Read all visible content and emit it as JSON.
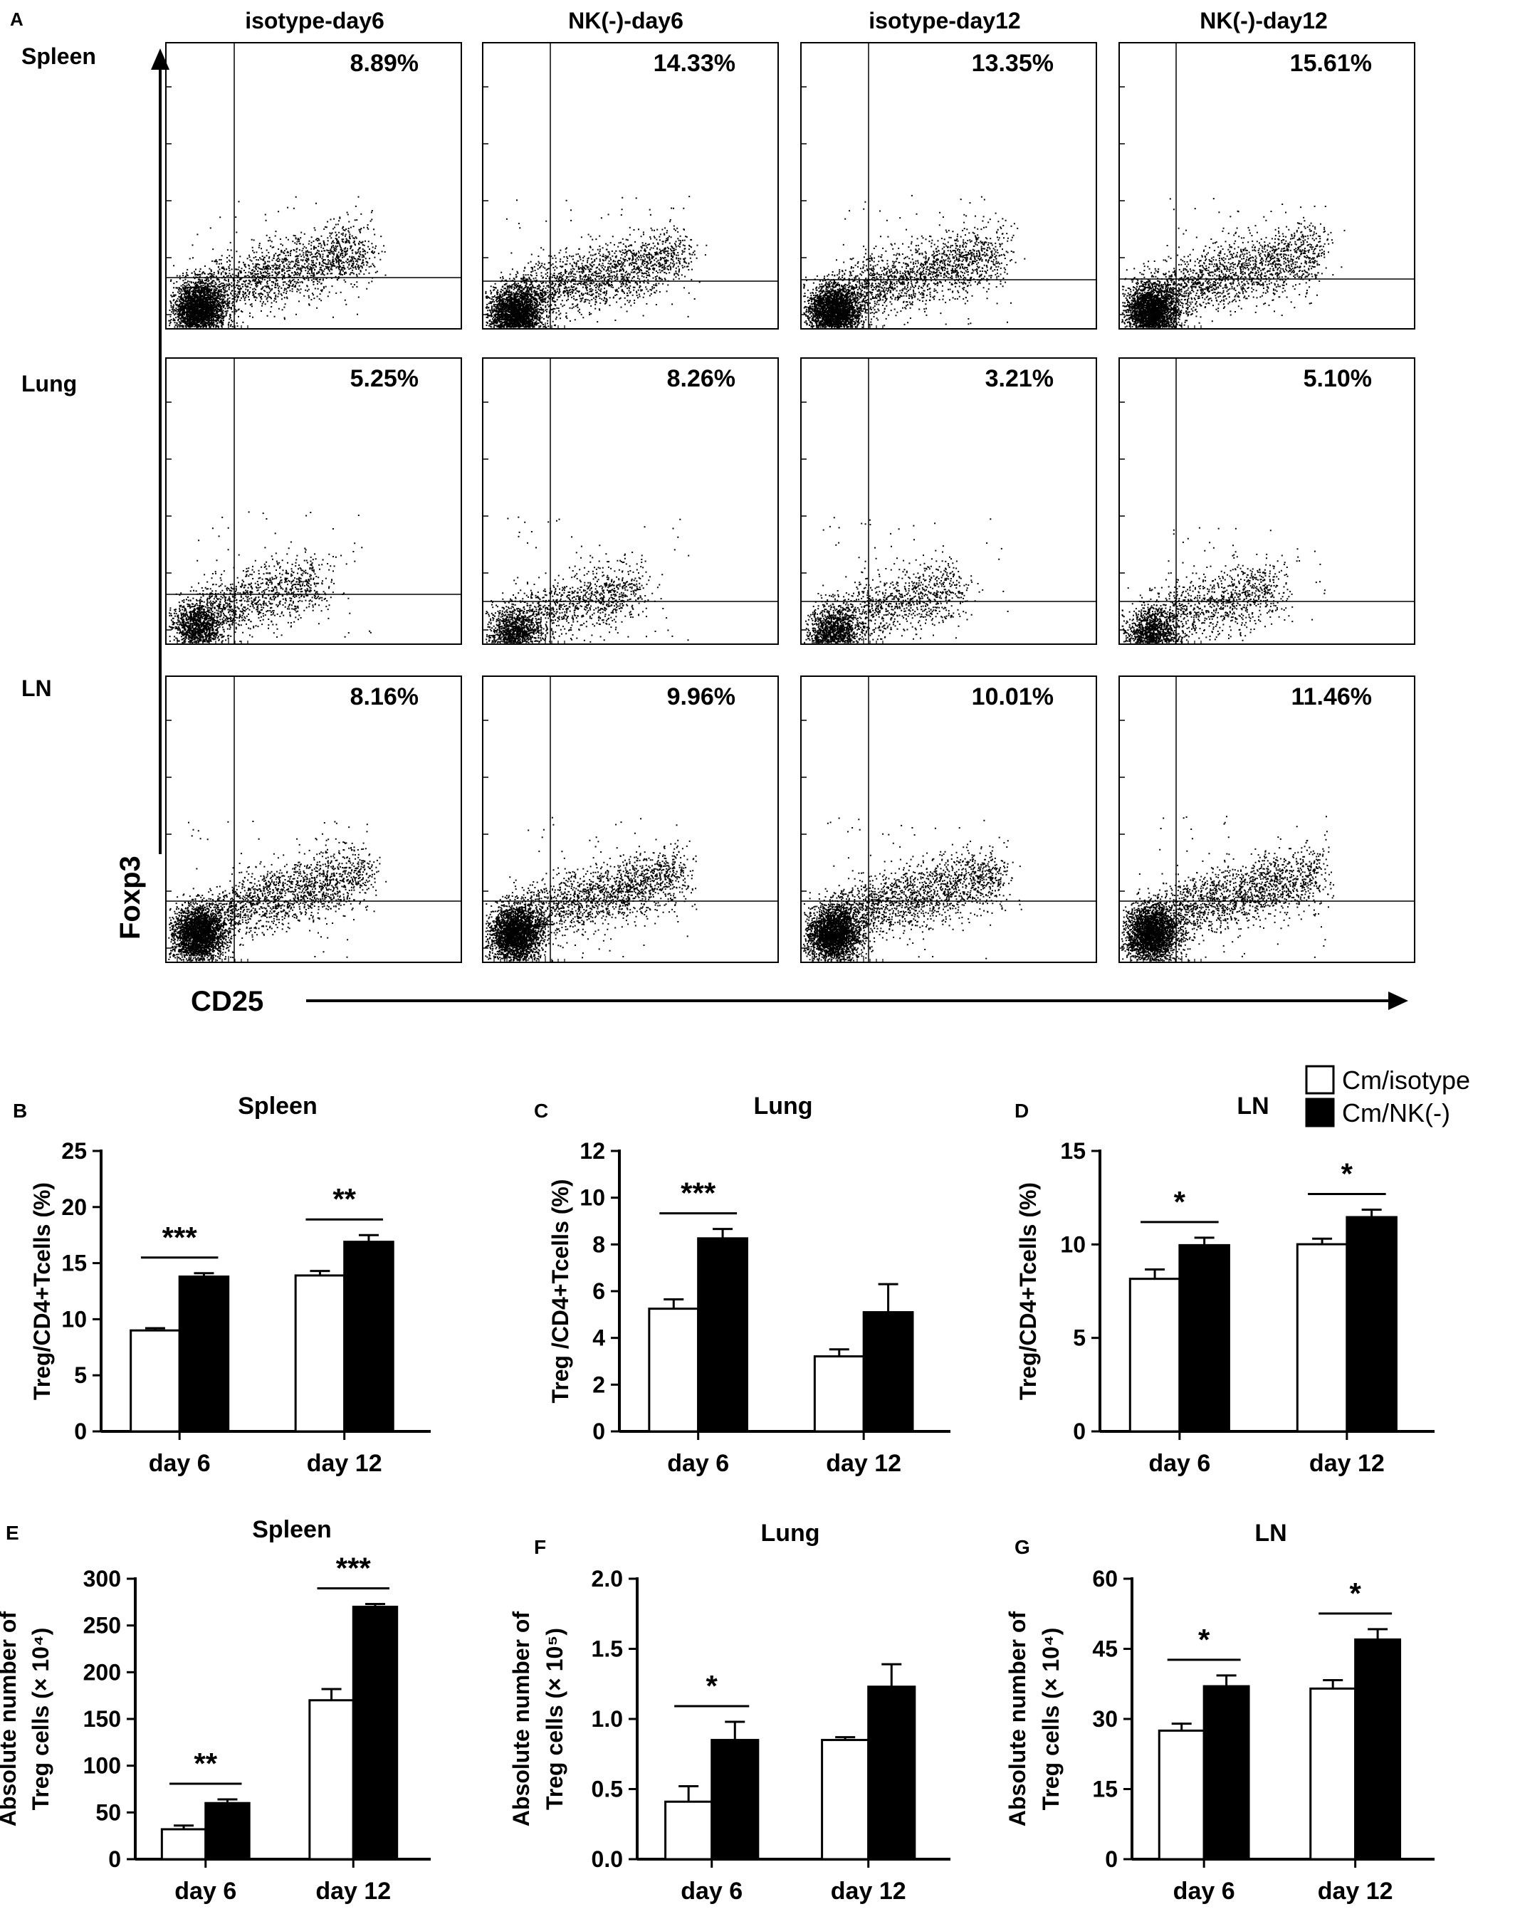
{
  "figure": {
    "panel_letters": [
      "A",
      "B",
      "C",
      "D",
      "E",
      "F",
      "G"
    ],
    "flow": {
      "columns": [
        "isotype-day6",
        "NK(-)-day6",
        "isotype-day12",
        "NK(-)-day12"
      ],
      "rows": [
        "Spleen",
        "Lung",
        "LN"
      ],
      "percentages": [
        [
          "8.89%",
          "14.33%",
          "13.35%",
          "15.61%"
        ],
        [
          "5.25%",
          "8.26%",
          "3.21%",
          "5.10%"
        ],
        [
          "8.16%",
          "9.96%",
          "10.01%",
          "11.46%"
        ]
      ],
      "y_axis_label": "Foxp3",
      "x_axis_label": "CD25"
    },
    "legend": {
      "items": [
        "Cm/isotype",
        "Cm/NK(-)"
      ],
      "colors": [
        "#ffffff",
        "#000000"
      ]
    }
  },
  "chart_data": [
    {
      "panel": "B",
      "type": "bar",
      "title": "Spleen",
      "ylabel": "Treg/CD4+Tcells (%)",
      "categories": [
        "day 6",
        "day 12"
      ],
      "ylim": [
        0,
        25
      ],
      "yticks": [
        0,
        5,
        10,
        15,
        20,
        25
      ],
      "series": [
        {
          "name": "Cm/isotype",
          "values": [
            9.0,
            13.9
          ],
          "err": [
            0.2,
            0.4
          ]
        },
        {
          "name": "Cm/NK(-)",
          "values": [
            13.8,
            16.9
          ],
          "err": [
            0.3,
            0.6
          ]
        }
      ],
      "significance": [
        "***",
        "**"
      ]
    },
    {
      "panel": "C",
      "type": "bar",
      "title": "Lung",
      "ylabel": "Treg /CD4+Tcells (%)",
      "categories": [
        "day 6",
        "day 12"
      ],
      "ylim": [
        0,
        12
      ],
      "yticks": [
        0,
        2,
        4,
        6,
        8,
        10,
        12
      ],
      "series": [
        {
          "name": "Cm/isotype",
          "values": [
            5.25,
            3.21
          ],
          "err": [
            0.4,
            0.3
          ]
        },
        {
          "name": "Cm/NK(-)",
          "values": [
            8.26,
            5.1
          ],
          "err": [
            0.4,
            1.2
          ]
        }
      ],
      "significance": [
        "***",
        ""
      ]
    },
    {
      "panel": "D",
      "type": "bar",
      "title": "LN",
      "ylabel": "Treg/CD4+Tcells (%)",
      "categories": [
        "day 6",
        "day 12"
      ],
      "ylim": [
        0,
        15
      ],
      "yticks": [
        0,
        5,
        10,
        15
      ],
      "series": [
        {
          "name": "Cm/isotype",
          "values": [
            8.16,
            10.01
          ],
          "err": [
            0.5,
            0.3
          ]
        },
        {
          "name": "Cm/NK(-)",
          "values": [
            9.96,
            11.46
          ],
          "err": [
            0.4,
            0.4
          ]
        }
      ],
      "significance": [
        "*",
        "*"
      ]
    },
    {
      "panel": "E",
      "type": "bar",
      "title": "Spleen",
      "ylabel_lines": [
        "Absolute number of",
        "Treg cells (× 10⁴)"
      ],
      "categories": [
        "day 6",
        "day 12"
      ],
      "ylim": [
        0,
        300
      ],
      "yticks": [
        0,
        50,
        100,
        150,
        200,
        250,
        300
      ],
      "series": [
        {
          "name": "Cm/isotype",
          "values": [
            32,
            170
          ],
          "err": [
            4,
            12
          ]
        },
        {
          "name": "Cm/NK(-)",
          "values": [
            60,
            270
          ],
          "err": [
            4,
            3
          ]
        }
      ],
      "significance": [
        "**",
        "***"
      ]
    },
    {
      "panel": "F",
      "type": "bar",
      "title": "Lung",
      "ylabel_lines": [
        "Absolute number of",
        "Treg cells (× 10⁵)"
      ],
      "categories": [
        "day 6",
        "day 12"
      ],
      "ylim": [
        0,
        2.0
      ],
      "yticks": [
        0.0,
        0.5,
        1.0,
        1.5,
        2.0
      ],
      "ytick_labels": [
        "0.0",
        "0.5",
        "1.0",
        "1.5",
        "2.0"
      ],
      "series": [
        {
          "name": "Cm/isotype",
          "values": [
            0.41,
            0.85
          ],
          "err": [
            0.11,
            0.02
          ]
        },
        {
          "name": "Cm/NK(-)",
          "values": [
            0.85,
            1.23
          ],
          "err": [
            0.13,
            0.16
          ]
        }
      ],
      "significance": [
        "*",
        ""
      ]
    },
    {
      "panel": "G",
      "type": "bar",
      "title": "LN",
      "ylabel_lines": [
        "Absolute number of",
        "Treg cells (× 10⁴)"
      ],
      "categories": [
        "day 6",
        "day 12"
      ],
      "ylim": [
        0,
        60
      ],
      "yticks": [
        0,
        15,
        30,
        45,
        60
      ],
      "series": [
        {
          "name": "Cm/isotype",
          "values": [
            27.5,
            36.5
          ],
          "err": [
            1.5,
            1.8
          ]
        },
        {
          "name": "Cm/NK(-)",
          "values": [
            37,
            47
          ],
          "err": [
            2.3,
            2.2
          ]
        }
      ],
      "significance": [
        "*",
        "*"
      ]
    }
  ]
}
